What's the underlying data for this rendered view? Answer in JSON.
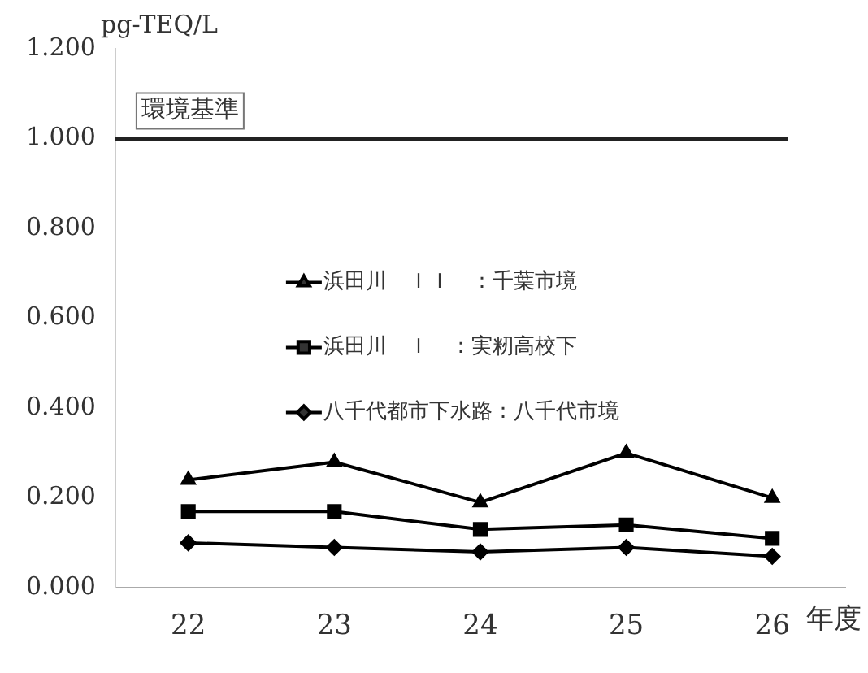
{
  "chart_data": {
    "type": "line",
    "ylabel": "pg-TEQ/L",
    "xlabel": "年度",
    "categories": [
      "22",
      "23",
      "24",
      "25",
      "26"
    ],
    "series": [
      {
        "name": "浜田川　ＩＩ　：千葉市境",
        "color": "#000000",
        "marker": "triangle",
        "values": [
          0.24,
          0.28,
          0.19,
          0.3,
          0.2
        ]
      },
      {
        "name": "浜田川　Ｉ　：実籾高校下",
        "color": "#000000",
        "marker": "square",
        "values": [
          0.17,
          0.17,
          0.13,
          0.14,
          0.11
        ]
      },
      {
        "name": "八千代都市下水路：八千代市境",
        "color": "#000000",
        "marker": "diamond",
        "values": [
          0.1,
          0.09,
          0.08,
          0.09,
          0.07
        ]
      }
    ],
    "ylim": [
      0,
      1.2
    ],
    "yticks": [
      {
        "value": 0,
        "label": "0.000"
      },
      {
        "value": 0.2,
        "label": "0.200"
      },
      {
        "value": 0.4,
        "label": "0.400"
      },
      {
        "value": 0.6,
        "label": "0.600"
      },
      {
        "value": 0.8,
        "label": "0.800"
      },
      {
        "value": 1.0,
        "label": "1.000"
      },
      {
        "value": 1.2,
        "label": "1.200"
      }
    ],
    "ref_lines": [
      {
        "axis": "y",
        "value": 1.0,
        "label": "環境基準",
        "color": "#222222"
      }
    ],
    "grid": false,
    "legend": "left",
    "line_style": "solid"
  }
}
